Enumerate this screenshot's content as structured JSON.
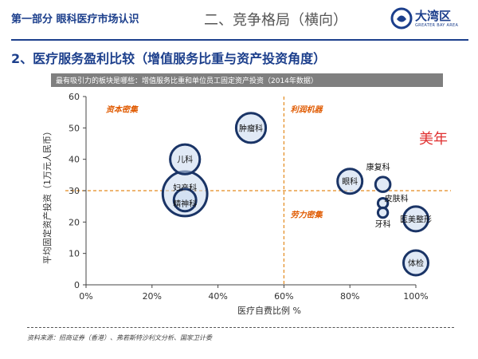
{
  "header": {
    "section_title": "第一部分 眼科医疗市场认识",
    "subtitle": "二、竞争格局（横向）",
    "logo": {
      "name": "大湾区",
      "tagline": "GREATER BAY AREA"
    }
  },
  "slide_title": "2、医疗服务盈利比较（增值服务比重与资产投资角度）",
  "banner": "最有吸引力的板块是哪些：增值服务比重和单位员工固定资产投资（2014年数据）",
  "watermark": "美年",
  "source": "资料来源：招商证券（香港）、弗若斯特沙利文分析、国家卫计委",
  "colors": {
    "brand": "#1c3f8c",
    "bubble_fill": "#c9d8ee",
    "bubble_stroke": "#1a3466",
    "guide": "#e38a1e",
    "quadrant_label": "#e05a00",
    "watermark": "#e03030"
  },
  "chart_data": {
    "type": "scatter",
    "title": "",
    "xlabel": "医疗自费比例 %",
    "ylabel": "平均固定资产投资（1万元人民币）",
    "xlim": [
      0,
      100
    ],
    "ylim": [
      0,
      60
    ],
    "x_ticks": [
      "0%",
      "20%",
      "40%",
      "60%",
      "80%",
      "100%"
    ],
    "x_tick_values": [
      0,
      20,
      40,
      60,
      80,
      100
    ],
    "y_ticks": [
      "0",
      "10",
      "20",
      "30",
      "40",
      "50",
      "60"
    ],
    "y_tick_values": [
      0,
      10,
      20,
      30,
      40,
      50,
      60
    ],
    "reference_lines": {
      "x": 60,
      "y": 30
    },
    "quadrant_labels": [
      {
        "text": "资本密集",
        "x": 6,
        "y": 55
      },
      {
        "text": "利润机器",
        "x": 62,
        "y": 55
      },
      {
        "text": "劳力密集",
        "x": 62,
        "y": 21.5
      }
    ],
    "points": [
      {
        "label": "肿瘤科",
        "x": 50,
        "y": 50,
        "size": 6
      },
      {
        "label": "儿科",
        "x": 30,
        "y": 40,
        "size": 6
      },
      {
        "label": "妇产科",
        "x": 30,
        "y": 29,
        "size": 9
      },
      {
        "label": "精神科",
        "x": 30,
        "y": 27,
        "size": 4.5
      },
      {
        "label": "眼科",
        "x": 80,
        "y": 33,
        "size": 5
      },
      {
        "label": "康复科",
        "x": 90,
        "y": 32,
        "size": 3
      },
      {
        "label": "皮肤科",
        "x": 90,
        "y": 26,
        "size": 2
      },
      {
        "label": "牙科",
        "x": 90,
        "y": 23,
        "size": 2
      },
      {
        "label": "医美整形",
        "x": 100,
        "y": 21,
        "size": 5
      },
      {
        "label": "体检",
        "x": 100,
        "y": 7,
        "size": 5
      }
    ]
  }
}
